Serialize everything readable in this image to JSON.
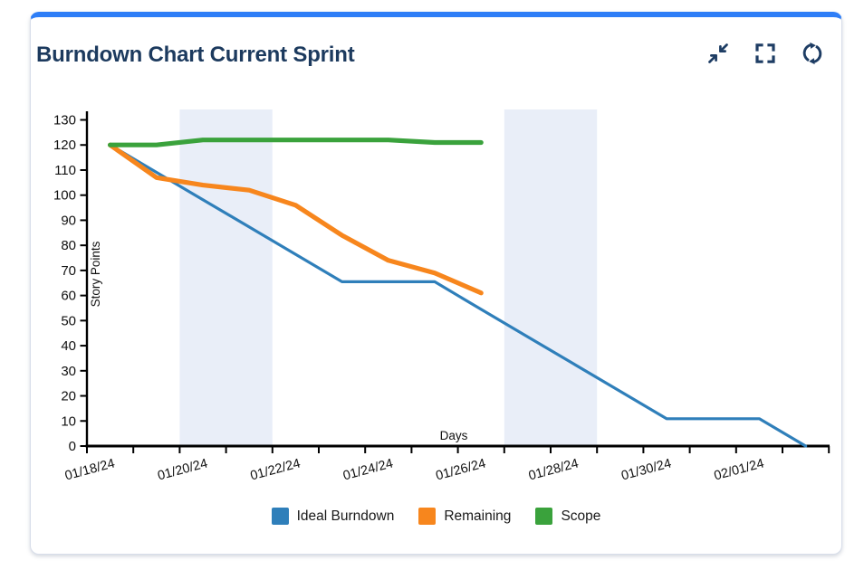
{
  "card": {
    "title": "Burndown Chart Current Sprint",
    "toolbar_icons": [
      "collapse",
      "fullscreen",
      "refresh"
    ],
    "accent_color": "#2e7ef7",
    "title_color": "#1c3a5e",
    "icon_color": "#1e3d64"
  },
  "chart_data": {
    "type": "line",
    "title": "Burndown Chart Current Sprint",
    "xlabel": "Days",
    "ylabel": "Story Points",
    "ylim": [
      0,
      130
    ],
    "ytick_step": 10,
    "ytick_labels": [
      "0",
      "10",
      "20",
      "30",
      "40",
      "50",
      "60",
      "70",
      "80",
      "90",
      "100",
      "110",
      "120",
      "130"
    ],
    "x_dates": [
      "01/18/24",
      "01/19/24",
      "01/20/24",
      "01/21/24",
      "01/22/24",
      "01/23/24",
      "01/24/24",
      "01/25/24",
      "01/26/24",
      "01/27/24",
      "01/28/24",
      "01/29/24",
      "01/30/24",
      "01/31/24",
      "02/01/24",
      "02/02/24"
    ],
    "xtick_labels": [
      "01/18/24",
      "01/20/24",
      "01/22/24",
      "01/24/24",
      "01/26/24",
      "01/28/24",
      "01/30/24",
      "02/01/24"
    ],
    "weekend_bands": [
      [
        2,
        3
      ],
      [
        9,
        10
      ]
    ],
    "band_color": "#e9eef8",
    "axis_color": "#000000",
    "grid": false,
    "legend_position": "bottom",
    "series": [
      {
        "name": "Ideal Burndown",
        "color": "#2f7fba",
        "width": 3.2,
        "values": [
          120,
          109.1,
          98.2,
          87.3,
          76.4,
          65.5,
          65.5,
          65.5,
          54.5,
          43.6,
          32.7,
          21.8,
          10.9,
          10.9,
          10.9,
          0
        ]
      },
      {
        "name": "Remaining",
        "color": "#f7861d",
        "width": 5.2,
        "values": [
          120,
          107,
          104,
          102,
          96,
          84,
          74,
          69,
          61
        ]
      },
      {
        "name": "Scope",
        "color": "#3aa23c",
        "width": 5.2,
        "values": [
          120,
          120,
          122,
          122,
          122,
          122,
          122,
          121,
          121
        ]
      }
    ]
  }
}
